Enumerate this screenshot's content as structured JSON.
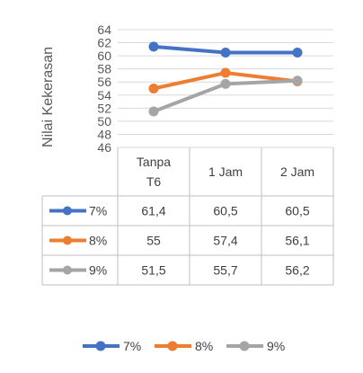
{
  "chart_data": {
    "type": "line",
    "ylabel": "Nilai Kekerasan",
    "ylim": [
      46,
      64
    ],
    "yticks": [
      46,
      48,
      50,
      52,
      54,
      56,
      58,
      60,
      62,
      64
    ],
    "categories": [
      [
        "Tanpa",
        "T6"
      ],
      [
        "1 Jam"
      ],
      [
        "2 Jam"
      ]
    ],
    "series": [
      {
        "name": "7%",
        "color": "#4472C4",
        "values": [
          61.4,
          60.5,
          60.5
        ],
        "labels": [
          "61,4",
          "60,5",
          "60,5"
        ]
      },
      {
        "name": "8%",
        "color": "#ED7D31",
        "values": [
          55,
          57.4,
          56.1
        ],
        "labels": [
          "55",
          "57,4",
          "56,1"
        ]
      },
      {
        "name": "9%",
        "color": "#A5A5A5",
        "values": [
          51.5,
          55.7,
          56.2
        ],
        "labels": [
          "51,5",
          "55,7",
          "56,2"
        ]
      }
    ],
    "grid": true,
    "legend": "bottom",
    "data_table": true
  }
}
